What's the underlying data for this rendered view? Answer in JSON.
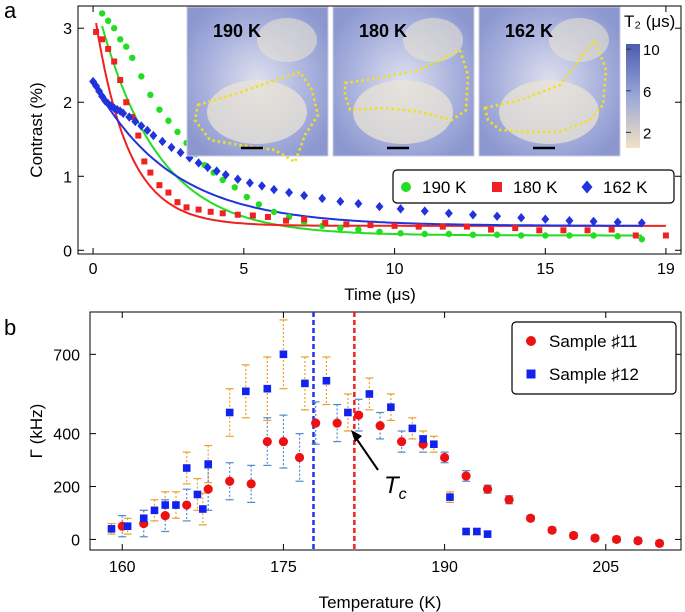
{
  "chart_data": [
    {
      "panel": "a",
      "type": "scatter",
      "xlabel": "Time (μs)",
      "ylabel": "Contrast (%)",
      "xlim": [
        -0.5,
        19.5
      ],
      "ylim": [
        -0.05,
        3.3
      ],
      "xticks": [
        "0",
        "5",
        "10",
        "15",
        "19"
      ],
      "yticks": [
        "0",
        "1",
        "2",
        "3"
      ],
      "xtick_values": [
        0,
        5,
        10,
        15,
        19
      ],
      "ytick_values": [
        0,
        1,
        2,
        3
      ],
      "legend_position": "right-middle",
      "series": [
        {
          "name": "190 K",
          "marker": "circle",
          "color": "#22dd22",
          "fit": {
            "A": 3.3,
            "tau": 1.95,
            "C": 0.2
          },
          "x": [
            0.3,
            0.5,
            0.7,
            0.9,
            1.1,
            1.3,
            1.6,
            1.9,
            2.2,
            2.5,
            2.8,
            3.1,
            3.4,
            3.7,
            4.0,
            4.3,
            4.7,
            5.1,
            5.5,
            6.0,
            6.5,
            7.0,
            7.6,
            8.2,
            8.8,
            9.5,
            10.2,
            11.0,
            11.8,
            12.6,
            13.4,
            14.2,
            15.0,
            15.8,
            16.6,
            17.4,
            18.2
          ],
          "y": [
            3.2,
            3.1,
            3.0,
            2.85,
            2.75,
            2.6,
            2.35,
            2.1,
            1.9,
            1.75,
            1.6,
            1.45,
            1.3,
            1.15,
            1.05,
            0.95,
            0.85,
            0.72,
            0.62,
            0.52,
            0.45,
            0.38,
            0.33,
            0.3,
            0.28,
            0.25,
            0.23,
            0.22,
            0.22,
            0.21,
            0.21,
            0.2,
            0.2,
            0.2,
            0.2,
            0.19,
            0.15
          ]
        },
        {
          "name": "180 K",
          "marker": "square",
          "color": "#ee2222",
          "fit": {
            "A": 3.0,
            "tau": 1.1,
            "C": 0.33
          },
          "x": [
            0.1,
            0.3,
            0.5,
            0.7,
            0.9,
            1.1,
            1.3,
            1.5,
            1.7,
            1.9,
            2.2,
            2.5,
            2.8,
            3.1,
            3.5,
            3.9,
            4.3,
            4.8,
            5.3,
            5.8,
            6.4,
            7.0,
            7.7,
            8.4,
            9.2,
            10.0,
            10.8,
            11.6,
            12.4,
            13.2,
            14.0,
            14.8,
            15.6,
            16.4,
            17.2,
            18.0,
            19.0
          ],
          "y": [
            2.95,
            2.85,
            2.72,
            2.55,
            2.3,
            2.0,
            1.8,
            1.55,
            1.2,
            1.05,
            0.88,
            0.78,
            0.65,
            0.58,
            0.55,
            0.52,
            0.5,
            0.48,
            0.47,
            0.45,
            0.4,
            0.42,
            0.37,
            0.35,
            0.34,
            0.33,
            0.32,
            0.32,
            0.32,
            0.28,
            0.3,
            0.27,
            0.27,
            0.27,
            0.28,
            0.2,
            0.2
          ]
        },
        {
          "name": "162 K",
          "marker": "diamond",
          "color": "#2233dd",
          "fit": {
            "A": 1.95,
            "tau": 2.6,
            "C": 0.33
          },
          "x": [
            0.0,
            0.1,
            0.2,
            0.3,
            0.4,
            0.5,
            0.6,
            0.7,
            0.8,
            0.9,
            1.0,
            1.2,
            1.4,
            1.6,
            1.8,
            2.0,
            2.3,
            2.6,
            2.9,
            3.2,
            3.5,
            3.8,
            4.1,
            4.4,
            4.8,
            5.2,
            5.6,
            6.0,
            6.5,
            7.0,
            7.6,
            8.2,
            8.8,
            9.5,
            10.2,
            11.0,
            11.8,
            12.6,
            13.4,
            14.2,
            15.0,
            15.8,
            16.6,
            17.4,
            18.2
          ],
          "y": [
            2.28,
            2.22,
            2.15,
            2.08,
            2.02,
            1.98,
            1.95,
            1.92,
            1.9,
            1.88,
            1.85,
            1.8,
            1.74,
            1.68,
            1.62,
            1.55,
            1.47,
            1.39,
            1.32,
            1.25,
            1.18,
            1.12,
            1.07,
            1.02,
            0.96,
            0.91,
            0.87,
            0.82,
            0.78,
            0.74,
            0.7,
            0.66,
            0.63,
            0.59,
            0.56,
            0.53,
            0.5,
            0.48,
            0.46,
            0.44,
            0.42,
            0.4,
            0.39,
            0.38,
            0.37
          ]
        }
      ],
      "inset": {
        "images": [
          "190 K",
          "180 K",
          "162 K"
        ],
        "colorbar_label": "T₂ (μs)",
        "colorbar_ticks": [
          "10",
          "6",
          "2"
        ],
        "colorbar_tick_values": [
          10,
          6,
          2
        ],
        "colorbar_range": [
          0.5,
          10.5
        ]
      }
    },
    {
      "panel": "b",
      "type": "scatter",
      "xlabel": "Temperature (K)",
      "ylabel": "Γ (kHz)",
      "xlim": [
        157,
        212
      ],
      "ylim": [
        -40,
        860
      ],
      "xticks": [
        "160",
        "175",
        "190",
        "205"
      ],
      "yticks": [
        "0",
        "200",
        "400",
        "700"
      ],
      "xtick_values": [
        160,
        175,
        190,
        205
      ],
      "ytick_values": [
        0,
        200,
        400,
        700
      ],
      "legend_position": "top-right",
      "vlines": [
        {
          "x": 177.8,
          "color": "#2233ee"
        },
        {
          "x": 181.6,
          "color": "#ee2222"
        }
      ],
      "annotation": {
        "text": "T",
        "subscript": "c",
        "x": 181.4,
        "y": 400
      },
      "series": [
        {
          "name": "Sample ♯11",
          "marker": "circle",
          "color": "#ee1111",
          "errbar_color": "#5588cc",
          "x": [
            160,
            162,
            164,
            166,
            168,
            170,
            172,
            173.5,
            175,
            176.5,
            178,
            180,
            182,
            184,
            186,
            188,
            190,
            192,
            194,
            196,
            198,
            200,
            202,
            204,
            206,
            208,
            210
          ],
          "y": [
            50,
            60,
            90,
            130,
            190,
            220,
            210,
            370,
            370,
            310,
            440,
            440,
            470,
            430,
            370,
            360,
            310,
            240,
            190,
            150,
            80,
            35,
            15,
            5,
            0,
            -5,
            -15
          ],
          "err": [
            40,
            50,
            60,
            60,
            80,
            70,
            70,
            90,
            100,
            90,
            80,
            70,
            60,
            50,
            40,
            30,
            20,
            20,
            15,
            15,
            10,
            10,
            10,
            10,
            10,
            10,
            10
          ]
        },
        {
          "name": "Sample ♯12",
          "marker": "square",
          "color": "#1122ee",
          "errbar_color": "#e8a030",
          "x": [
            159,
            160.5,
            162,
            163,
            164,
            165,
            166,
            167,
            167.5,
            168,
            170,
            171.5,
            173.5,
            175,
            177,
            179,
            181,
            183,
            185,
            187,
            188,
            189,
            190.5,
            192,
            193,
            194
          ],
          "y": [
            40,
            50,
            80,
            110,
            130,
            130,
            270,
            170,
            115,
            285,
            480,
            560,
            570,
            700,
            590,
            600,
            480,
            550,
            500,
            420,
            380,
            360,
            160,
            30,
            30,
            20
          ],
          "err": [
            20,
            30,
            30,
            40,
            50,
            50,
            60,
            60,
            60,
            70,
            90,
            100,
            120,
            130,
            100,
            90,
            70,
            60,
            50,
            40,
            30,
            30,
            20,
            10,
            10,
            10
          ]
        }
      ]
    }
  ],
  "labels": {
    "panel_a": "a",
    "panel_b": "b"
  }
}
